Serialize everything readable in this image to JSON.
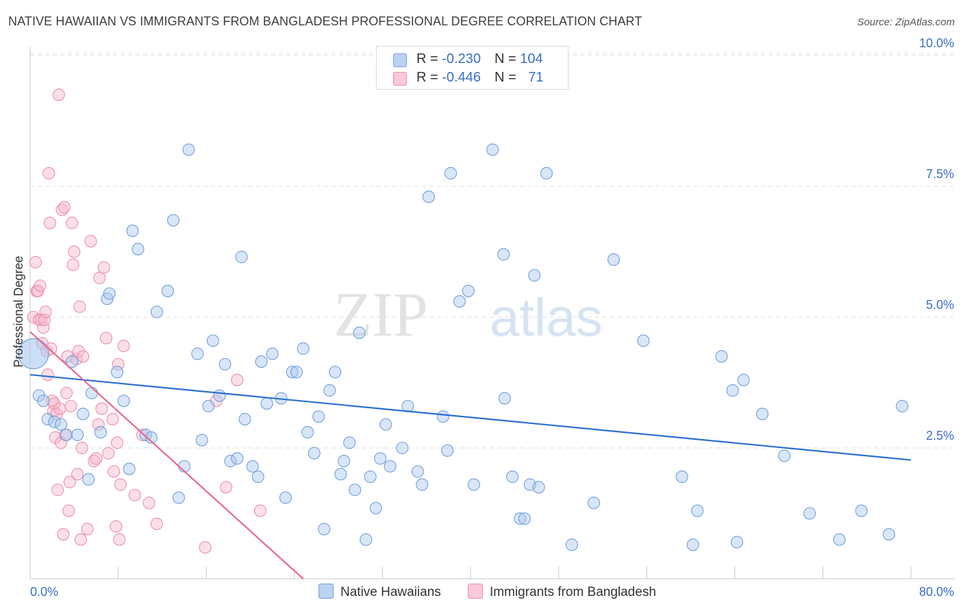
{
  "title": "NATIVE HAWAIIAN VS IMMIGRANTS FROM BANGLADESH PROFESSIONAL DEGREE CORRELATION CHART",
  "source": "Source: ZipAtlas.com",
  "watermark": {
    "zip": "ZIP",
    "atlas": "atlas"
  },
  "legend_top": {
    "series1": {
      "r_label": "R = ",
      "r_value": "-0.230",
      "n_label": "N = ",
      "n_value": "104"
    },
    "series2": {
      "r_label": "R = ",
      "r_value": "-0.446",
      "n_label": "N = ",
      "n_value": "71"
    }
  },
  "legend_bottom": {
    "series1": "Native Hawaiians",
    "series2": "Immigrants from Bangladesh"
  },
  "colors": {
    "blue_fill": "#a9c8ee",
    "blue_stroke": "#6e9fde",
    "blue_line": "#2a6fd0",
    "pink_fill": "#f6b8cb",
    "pink_stroke": "#ec8eab",
    "pink_line": "#e8688f",
    "grid": "#dddddd",
    "tick_text": "#3a6fc4"
  },
  "chart_data": {
    "type": "scatter",
    "xlabel": "",
    "ylabel": "Professional Degree",
    "xlim": [
      0,
      80
    ],
    "ylim": [
      0,
      10
    ],
    "x_tick_labels": [
      "0.0%",
      "80.0%"
    ],
    "y_ticks": [
      2.5,
      5.0,
      7.5,
      10.0
    ],
    "y_tick_labels": [
      "2.5%",
      "5.0%",
      "7.5%",
      "10.0%"
    ],
    "grid": true,
    "series": [
      {
        "name": "Native Hawaiians",
        "color": "#6e9fde",
        "trend": {
          "x": [
            0,
            80
          ],
          "y": [
            3.9,
            2.27
          ]
        },
        "points": [
          [
            0.3,
            4.3
          ],
          [
            0.8,
            3.5
          ],
          [
            1.2,
            3.4
          ],
          [
            1.6,
            3.05
          ],
          [
            2.2,
            3.0
          ],
          [
            2.8,
            2.95
          ],
          [
            3.3,
            2.75
          ],
          [
            3.8,
            4.15
          ],
          [
            4.3,
            2.75
          ],
          [
            4.8,
            3.15
          ],
          [
            5.3,
            1.9
          ],
          [
            5.6,
            3.55
          ],
          [
            6.4,
            2.8
          ],
          [
            7.0,
            5.35
          ],
          [
            7.2,
            5.45
          ],
          [
            7.9,
            3.95
          ],
          [
            8.5,
            3.4
          ],
          [
            9.0,
            2.1
          ],
          [
            9.3,
            6.65
          ],
          [
            9.8,
            6.3
          ],
          [
            10.5,
            2.75
          ],
          [
            11.0,
            2.7
          ],
          [
            11.5,
            5.1
          ],
          [
            12.5,
            5.5
          ],
          [
            13.0,
            6.85
          ],
          [
            13.5,
            1.55
          ],
          [
            14.0,
            2.15
          ],
          [
            14.4,
            8.2
          ],
          [
            15.2,
            4.3
          ],
          [
            15.6,
            2.65
          ],
          [
            16.2,
            3.3
          ],
          [
            16.6,
            4.55
          ],
          [
            17.2,
            3.5
          ],
          [
            17.7,
            4.1
          ],
          [
            18.2,
            2.25
          ],
          [
            18.8,
            2.3
          ],
          [
            19.2,
            6.15
          ],
          [
            19.5,
            3.05
          ],
          [
            20.2,
            2.15
          ],
          [
            20.7,
            1.95
          ],
          [
            21.0,
            4.15
          ],
          [
            21.5,
            3.35
          ],
          [
            22.0,
            4.3
          ],
          [
            22.8,
            3.45
          ],
          [
            23.2,
            1.55
          ],
          [
            23.8,
            3.95
          ],
          [
            24.2,
            3.95
          ],
          [
            24.8,
            4.4
          ],
          [
            25.2,
            2.8
          ],
          [
            25.8,
            2.4
          ],
          [
            26.2,
            3.1
          ],
          [
            26.7,
            0.95
          ],
          [
            27.2,
            3.6
          ],
          [
            27.7,
            3.95
          ],
          [
            28.2,
            2.0
          ],
          [
            28.5,
            2.25
          ],
          [
            29.0,
            2.6
          ],
          [
            29.5,
            1.7
          ],
          [
            29.9,
            4.7
          ],
          [
            30.5,
            0.75
          ],
          [
            30.9,
            1.95
          ],
          [
            31.4,
            1.35
          ],
          [
            31.8,
            2.3
          ],
          [
            32.3,
            2.95
          ],
          [
            32.7,
            2.15
          ],
          [
            33.8,
            2.5
          ],
          [
            34.3,
            3.3
          ],
          [
            35.2,
            2.05
          ],
          [
            35.6,
            1.8
          ],
          [
            36.2,
            7.3
          ],
          [
            37.5,
            3.1
          ],
          [
            37.9,
            2.45
          ],
          [
            38.2,
            7.75
          ],
          [
            39.0,
            5.3
          ],
          [
            39.8,
            5.5
          ],
          [
            40.3,
            1.8
          ],
          [
            42.0,
            8.2
          ],
          [
            43.0,
            6.2
          ],
          [
            43.1,
            3.45
          ],
          [
            43.8,
            1.95
          ],
          [
            44.5,
            1.15
          ],
          [
            44.9,
            1.15
          ],
          [
            45.4,
            1.8
          ],
          [
            45.8,
            5.8
          ],
          [
            46.2,
            1.75
          ],
          [
            46.9,
            7.75
          ],
          [
            49.2,
            0.65
          ],
          [
            51.2,
            1.45
          ],
          [
            53.0,
            6.1
          ],
          [
            55.7,
            4.55
          ],
          [
            59.2,
            1.95
          ],
          [
            60.2,
            0.65
          ],
          [
            60.6,
            1.3
          ],
          [
            62.8,
            4.25
          ],
          [
            63.8,
            3.6
          ],
          [
            64.2,
            0.7
          ],
          [
            64.8,
            3.8
          ],
          [
            66.5,
            3.15
          ],
          [
            68.5,
            2.35
          ],
          [
            70.8,
            1.25
          ],
          [
            73.5,
            0.75
          ],
          [
            75.5,
            1.3
          ],
          [
            78.0,
            0.85
          ],
          [
            79.2,
            3.3
          ]
        ]
      },
      {
        "name": "Immigrants from Bangladesh",
        "color": "#ec8eab",
        "trend": {
          "x": [
            0,
            24.8
          ],
          "y": [
            4.72,
            0
          ]
        },
        "points": [
          [
            0.3,
            5.0
          ],
          [
            0.5,
            6.05
          ],
          [
            0.6,
            5.5
          ],
          [
            0.7,
            5.5
          ],
          [
            0.8,
            4.95
          ],
          [
            0.9,
            5.6
          ],
          [
            1.0,
            4.95
          ],
          [
            1.1,
            4.5
          ],
          [
            1.2,
            4.8
          ],
          [
            1.3,
            4.95
          ],
          [
            1.4,
            5.1
          ],
          [
            1.5,
            4.35
          ],
          [
            1.6,
            3.9
          ],
          [
            1.7,
            7.75
          ],
          [
            1.8,
            6.8
          ],
          [
            1.9,
            4.4
          ],
          [
            2.0,
            3.4
          ],
          [
            2.1,
            3.2
          ],
          [
            2.2,
            3.35
          ],
          [
            2.3,
            2.7
          ],
          [
            2.4,
            3.15
          ],
          [
            2.5,
            1.7
          ],
          [
            2.6,
            9.25
          ],
          [
            2.7,
            3.25
          ],
          [
            2.8,
            2.6
          ],
          [
            2.9,
            7.05
          ],
          [
            3.0,
            0.85
          ],
          [
            3.1,
            7.1
          ],
          [
            3.2,
            2.75
          ],
          [
            3.3,
            3.55
          ],
          [
            3.4,
            4.25
          ],
          [
            3.5,
            1.3
          ],
          [
            3.6,
            1.85
          ],
          [
            3.7,
            3.3
          ],
          [
            3.8,
            6.8
          ],
          [
            3.9,
            6.0
          ],
          [
            4.0,
            6.25
          ],
          [
            4.2,
            4.2
          ],
          [
            4.3,
            2.0
          ],
          [
            4.4,
            4.35
          ],
          [
            4.5,
            5.2
          ],
          [
            4.6,
            0.75
          ],
          [
            4.7,
            2.5
          ],
          [
            4.8,
            4.25
          ],
          [
            5.2,
            0.95
          ],
          [
            5.5,
            6.45
          ],
          [
            5.8,
            2.25
          ],
          [
            6.0,
            2.3
          ],
          [
            6.2,
            2.95
          ],
          [
            6.3,
            5.75
          ],
          [
            6.5,
            3.25
          ],
          [
            6.7,
            5.95
          ],
          [
            6.9,
            4.6
          ],
          [
            7.1,
            2.4
          ],
          [
            7.5,
            3.05
          ],
          [
            7.6,
            2.05
          ],
          [
            7.8,
            1.0
          ],
          [
            7.9,
            2.6
          ],
          [
            8.0,
            4.1
          ],
          [
            8.1,
            0.75
          ],
          [
            8.2,
            1.8
          ],
          [
            8.5,
            4.45
          ],
          [
            9.5,
            1.6
          ],
          [
            10.2,
            2.75
          ],
          [
            10.8,
            1.45
          ],
          [
            11.5,
            1.05
          ],
          [
            15.9,
            0.6
          ],
          [
            16.9,
            3.4
          ],
          [
            17.8,
            1.75
          ],
          [
            18.8,
            3.8
          ],
          [
            20.9,
            1.3
          ]
        ]
      }
    ]
  }
}
